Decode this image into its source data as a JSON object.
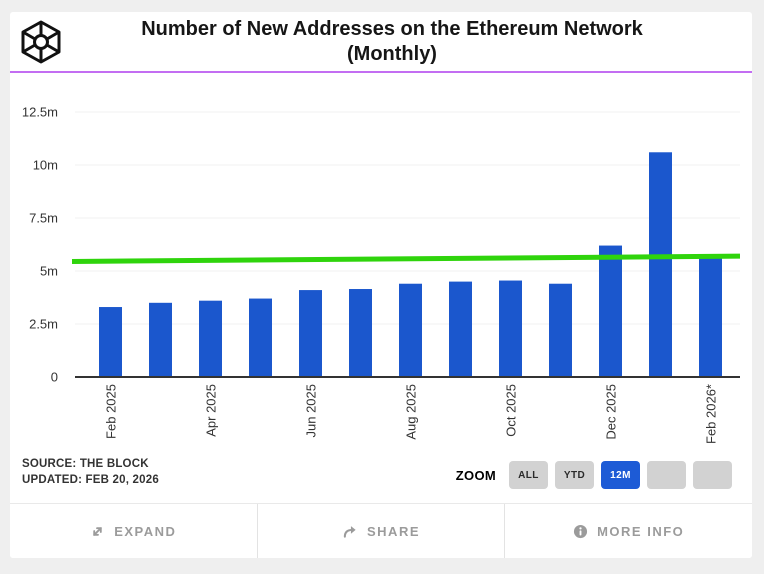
{
  "header": {
    "title_line1": "Number of New Addresses on the Ethereum Network",
    "title_line2": "(Monthly)"
  },
  "chart_data": {
    "type": "bar",
    "title": "Number of New Addresses on the Ethereum Network (Monthly)",
    "categories": [
      "Feb 2025",
      "Mar 2025",
      "Apr 2025",
      "May 2025",
      "Jun 2025",
      "Jul 2025",
      "Aug 2025",
      "Sep 2025",
      "Oct 2025",
      "Nov 2025",
      "Dec 2025",
      "Jan 2026",
      "Feb 2026*"
    ],
    "values_millions": [
      3.3,
      3.5,
      3.6,
      3.7,
      4.1,
      4.15,
      4.4,
      4.5,
      4.55,
      4.4,
      6.2,
      10.6,
      5.65
    ],
    "x_tick_labels_shown": [
      "Feb 2025",
      "Apr 2025",
      "Jun 2025",
      "Aug 2025",
      "Oct 2025",
      "Dec 2025",
      "Feb 2026*"
    ],
    "y_ticks": {
      "values": [
        0,
        2.5,
        5,
        7.5,
        10,
        12.5
      ],
      "labels": [
        "0",
        "2.5m",
        "5m",
        "7.5m",
        "10m",
        "12.5m"
      ]
    },
    "ylim": [
      0,
      13.3
    ],
    "grid": true,
    "legend": "none",
    "bar_color": "#1b57cd",
    "trend_line": {
      "color": "#2fd40c",
      "start_value_millions": 5.45,
      "end_value_millions": 5.7
    }
  },
  "meta": {
    "source": "SOURCE: THE BLOCK",
    "updated": "UPDATED: FEB 20, 2026"
  },
  "zoom": {
    "label": "ZOOM",
    "active_range": "12M",
    "buttons": [
      {
        "label": "ALL",
        "active": false
      },
      {
        "label": "YTD",
        "active": false
      },
      {
        "label": "12M",
        "active": true
      },
      {
        "label": "",
        "active": false
      },
      {
        "label": "",
        "active": false
      }
    ]
  },
  "actions": [
    {
      "label": "EXPAND",
      "icon": "expand-icon"
    },
    {
      "label": "SHARE",
      "icon": "share-icon"
    },
    {
      "label": "MORE INFO",
      "icon": "info-icon"
    }
  ],
  "colors": {
    "accent_line": "#c36df2",
    "bar": "#1b57cd",
    "trend": "#2fd40c",
    "active_button": "#1d5bd6",
    "axis_text": "#333333"
  }
}
